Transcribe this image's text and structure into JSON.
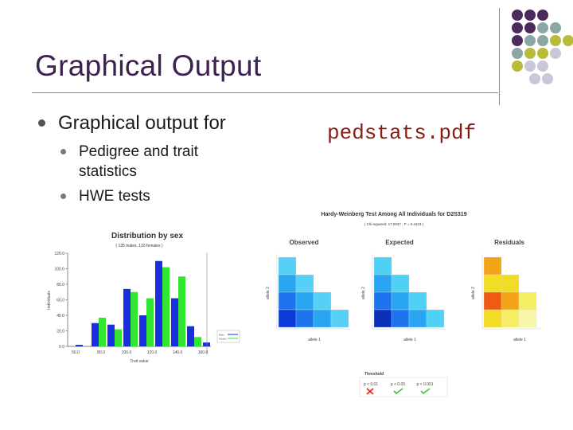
{
  "slide": {
    "title": "Graphical Output",
    "bullet": "Graphical output for",
    "sub_bullets": [
      "Pedigree and trait",
      "statistics",
      "HWE tests"
    ],
    "filename": "pedstats.pdf"
  },
  "palette": {
    "purple": "#4b2a5c",
    "teal": "#8ba7a3",
    "olive": "#b9bb3b",
    "lavender": "#c9c7d8"
  },
  "dot_grid": [
    [
      "purple",
      "purple",
      "purple"
    ],
    [
      "purple",
      "purple",
      "teal",
      "teal"
    ],
    [
      "purple",
      "teal",
      "teal",
      "olive",
      "olive"
    ],
    [
      "teal",
      "olive",
      "olive",
      "lavender"
    ],
    [
      "olive",
      "lavender",
      "lavender"
    ],
    [
      "lavender",
      "lavender"
    ]
  ],
  "chart_data": [
    {
      "type": "bar",
      "title": "Distribution by sex",
      "subtitle": "( 135 males, 123 females )",
      "xlabel": "Trait value",
      "ylabel": "Individuals",
      "x_ticks": [
        "50.0",
        "80.0",
        "100.0",
        "120.0",
        "140.0",
        "160.0"
      ],
      "y_ticks": [
        "0.0",
        "20.0",
        "40.0",
        "60.0",
        "80.0",
        "100.0",
        "120.0"
      ],
      "ylim": [
        0,
        120
      ],
      "series": [
        {
          "name": "Males",
          "color": "#1a2ee0",
          "values": [
            2,
            30,
            28,
            74,
            40,
            110,
            62,
            26,
            5
          ]
        },
        {
          "name": "Females",
          "color": "#33e633",
          "values": [
            0,
            37,
            22,
            70,
            62,
            102,
            90,
            12,
            0
          ]
        }
      ]
    },
    {
      "type": "heatmap",
      "title": "Hardy-Weinberg Test Among All Individuals for D2S319",
      "subtitle": "( Chi-squared: 17.0037 ; P = 0.4423 )",
      "panels": [
        "Observed",
        "Expected",
        "Residuals"
      ],
      "axis_label_x": "allele 1",
      "axis_label_y": "allele 2",
      "legend_title": "Threshold",
      "legend_items": [
        "p < 0.01",
        "p < 0.05",
        "p < 0.001"
      ]
    }
  ]
}
